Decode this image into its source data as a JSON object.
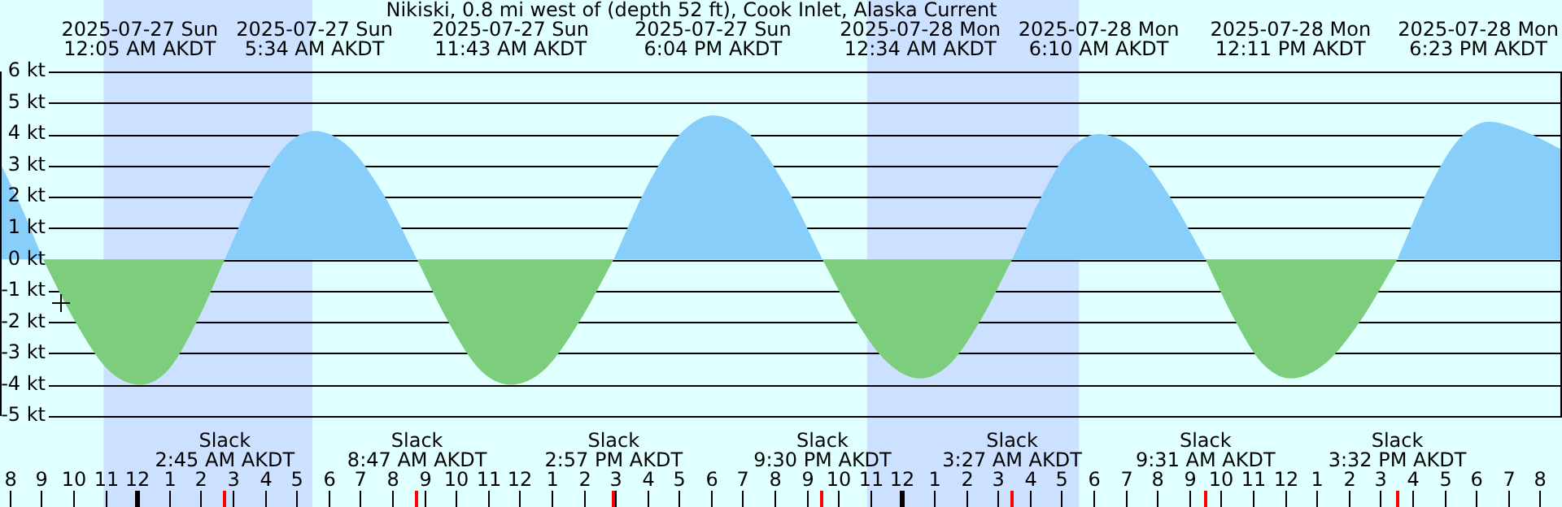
{
  "chart_data": {
    "type": "area",
    "title": "Nikiski, 0.8 mi west of (depth 52 ft), Cook Inlet, Alaska Current",
    "x": [
      "2025-07-26T19:42",
      "2025-07-26T20:24",
      "2025-07-26T21:03",
      "2025-07-26T22:04",
      "2025-07-26T23:04",
      "2025-07-27T00:05",
      "2025-07-27T01:00",
      "2025-07-27T01:52",
      "2025-07-27T02:45",
      "2025-07-27T03:41",
      "2025-07-27T04:38",
      "2025-07-27T05:34",
      "2025-07-27T06:38",
      "2025-07-27T07:43",
      "2025-07-27T08:47",
      "2025-07-27T09:46",
      "2025-07-27T10:44",
      "2025-07-27T11:43",
      "2025-07-27T12:48",
      "2025-07-27T13:52",
      "2025-07-27T14:57",
      "2025-07-27T15:59",
      "2025-07-27T17:02",
      "2025-07-27T18:04",
      "2025-07-27T19:13",
      "2025-07-27T20:22",
      "2025-07-27T21:30",
      "2025-07-27T22:31",
      "2025-07-27T23:33",
      "2025-07-28T00:34",
      "2025-07-28T01:32",
      "2025-07-28T02:29",
      "2025-07-28T03:27",
      "2025-07-28T04:22",
      "2025-07-28T05:16",
      "2025-07-28T06:10",
      "2025-07-28T07:17",
      "2025-07-28T08:24",
      "2025-07-28T09:31",
      "2025-07-28T10:25",
      "2025-07-28T11:17",
      "2025-07-28T12:11",
      "2025-07-28T13:18",
      "2025-07-28T14:25",
      "2025-07-28T15:32",
      "2025-07-28T16:29",
      "2025-07-28T17:26",
      "2025-07-28T18:23",
      "2025-07-28T19:30",
      "2025-07-28T20:42"
    ],
    "series": [
      {
        "color": "#87cefa",
        "values": [
          3.1,
          1.6,
          0,
          null,
          null,
          null,
          null,
          null,
          0,
          2.1,
          3.6,
          4.1,
          3.6,
          2.1,
          0,
          null,
          null,
          null,
          null,
          null,
          0,
          2.3,
          4.0,
          4.6,
          4.0,
          2.3,
          0,
          null,
          null,
          null,
          null,
          null,
          0,
          2.0,
          3.5,
          4.0,
          3.5,
          2.0,
          0,
          null,
          null,
          null,
          null,
          null,
          0,
          2.2,
          3.8,
          4.4,
          4.1,
          3.5
        ]
      },
      {
        "color": "#7ccd7c",
        "values": [
          null,
          null,
          0,
          -2.0,
          -3.5,
          -4.0,
          -3.5,
          -2.0,
          0,
          null,
          null,
          null,
          null,
          null,
          0,
          -2.0,
          -3.5,
          -4.0,
          -3.5,
          -2.0,
          0,
          null,
          null,
          null,
          null,
          null,
          0,
          -1.9,
          -3.3,
          -3.8,
          -3.3,
          -1.9,
          0,
          null,
          null,
          null,
          null,
          null,
          0,
          -1.9,
          -3.3,
          -3.8,
          -3.3,
          -1.9,
          0,
          null,
          null,
          null,
          null,
          null
        ]
      }
    ],
    "xticks": [
      {
        "value": "2025-07-26T20:00",
        "label": "8"
      },
      {
        "value": "2025-07-26T21:00",
        "label": "9"
      },
      {
        "value": "2025-07-26T22:00",
        "label": "10"
      },
      {
        "value": "2025-07-26T23:00",
        "label": "11"
      },
      {
        "value": "2025-07-27T00:00",
        "label": "12"
      },
      {
        "value": "2025-07-27T01:00",
        "label": "1"
      },
      {
        "value": "2025-07-27T02:00",
        "label": "2"
      },
      {
        "value": "2025-07-27T03:00",
        "label": "3"
      },
      {
        "value": "2025-07-27T04:00",
        "label": "4"
      },
      {
        "value": "2025-07-27T05:00",
        "label": "5"
      },
      {
        "value": "2025-07-27T06:00",
        "label": "6"
      },
      {
        "value": "2025-07-27T07:00",
        "label": "7"
      },
      {
        "value": "2025-07-27T08:00",
        "label": "8"
      },
      {
        "value": "2025-07-27T09:00",
        "label": "9"
      },
      {
        "value": "2025-07-27T10:00",
        "label": "10"
      },
      {
        "value": "2025-07-27T11:00",
        "label": "11"
      },
      {
        "value": "2025-07-27T12:00",
        "label": "12"
      },
      {
        "value": "2025-07-27T13:00",
        "label": "1"
      },
      {
        "value": "2025-07-27T14:00",
        "label": "2"
      },
      {
        "value": "2025-07-27T15:00",
        "label": "3"
      },
      {
        "value": "2025-07-27T16:00",
        "label": "4"
      },
      {
        "value": "2025-07-27T17:00",
        "label": "5"
      },
      {
        "value": "2025-07-27T18:00",
        "label": "6"
      },
      {
        "value": "2025-07-27T19:00",
        "label": "7"
      },
      {
        "value": "2025-07-27T20:00",
        "label": "8"
      },
      {
        "value": "2025-07-27T21:00",
        "label": "9"
      },
      {
        "value": "2025-07-27T22:00",
        "label": "10"
      },
      {
        "value": "2025-07-27T23:00",
        "label": "11"
      },
      {
        "value": "2025-07-28T00:00",
        "label": "12"
      },
      {
        "value": "2025-07-28T01:00",
        "label": "1"
      },
      {
        "value": "2025-07-28T02:00",
        "label": "2"
      },
      {
        "value": "2025-07-28T03:00",
        "label": "3"
      },
      {
        "value": "2025-07-28T04:00",
        "label": "4"
      },
      {
        "value": "2025-07-28T05:00",
        "label": "5"
      },
      {
        "value": "2025-07-28T06:00",
        "label": "6"
      },
      {
        "value": "2025-07-28T07:00",
        "label": "7"
      },
      {
        "value": "2025-07-28T08:00",
        "label": "8"
      },
      {
        "value": "2025-07-28T09:00",
        "label": "9"
      },
      {
        "value": "2025-07-28T10:00",
        "label": "10"
      },
      {
        "value": "2025-07-28T11:00",
        "label": "11"
      },
      {
        "value": "2025-07-28T12:00",
        "label": "12"
      },
      {
        "value": "2025-07-28T13:00",
        "label": "1"
      },
      {
        "value": "2025-07-28T14:00",
        "label": "2"
      },
      {
        "value": "2025-07-28T15:00",
        "label": "3"
      },
      {
        "value": "2025-07-28T16:00",
        "label": "4"
      },
      {
        "value": "2025-07-28T17:00",
        "label": "5"
      },
      {
        "value": "2025-07-28T18:00",
        "label": "6"
      },
      {
        "value": "2025-07-28T19:00",
        "label": "7"
      },
      {
        "value": "2025-07-28T20:00",
        "label": "8"
      }
    ],
    "xlim": [
      "2025-07-26T19:42",
      "2025-07-28T20:42"
    ],
    "ylim": [
      -5,
      6
    ],
    "yticks": [
      {
        "value": -5,
        "label": "-5 kt"
      },
      {
        "value": -4,
        "label": "-4 kt"
      },
      {
        "value": -3,
        "label": "-3 kt"
      },
      {
        "value": -2,
        "label": "-2 kt"
      },
      {
        "value": -1,
        "label": "-1 kt"
      },
      {
        "value": 0,
        "label": "0 kt"
      },
      {
        "value": 1,
        "label": "1 kt"
      },
      {
        "value": 2,
        "label": "2 kt"
      },
      {
        "value": 3,
        "label": "3 kt"
      },
      {
        "value": 4,
        "label": "4 kt"
      },
      {
        "value": 5,
        "label": "5 kt"
      },
      {
        "value": 6,
        "label": "6 kt"
      }
    ],
    "grid": "y",
    "legend": false,
    "marker": "none",
    "bands": [
      {
        "axis": "x",
        "from": "2025-07-26T22:57",
        "to": "2025-07-27T05:30",
        "color": "#cce0ff"
      },
      {
        "axis": "x",
        "from": "2025-07-27T22:54",
        "to": "2025-07-28T05:33",
        "color": "#cce0ff"
      }
    ],
    "annotations": [
      "2025-07-27 Sun\n12:05 AM AKDT",
      "2025-07-27 Sun\n5:34 AM AKDT",
      "2025-07-27 Sun\n11:43 AM AKDT",
      "2025-07-27 Sun\n6:04 PM AKDT",
      "2025-07-28 Mon\n12:34 AM AKDT",
      "2025-07-28 Mon\n6:10 AM AKDT",
      "2025-07-28 Mon\n12:11 PM AKDT",
      "2025-07-28 Mon\n6:23 PM AKDT",
      {
        "text": "Slack\n2:45 AM AKDT",
        "x": "2025-07-27T02:45"
      },
      {
        "text": "Slack\n8:47 AM AKDT",
        "x": "2025-07-27T08:47"
      },
      {
        "text": "Slack\n2:57 PM AKDT",
        "x": "2025-07-27T14:57"
      },
      {
        "text": "Slack\n9:30 PM AKDT",
        "x": "2025-07-27T21:30"
      },
      {
        "text": "Slack\n3:27 AM AKDT",
        "x": "2025-07-28T03:27"
      },
      {
        "text": "Slack\n9:31 AM AKDT",
        "x": "2025-07-28T09:31"
      },
      {
        "text": "Slack\n3:32 PM AKDT",
        "x": "2025-07-28T15:32"
      }
    ]
  }
}
